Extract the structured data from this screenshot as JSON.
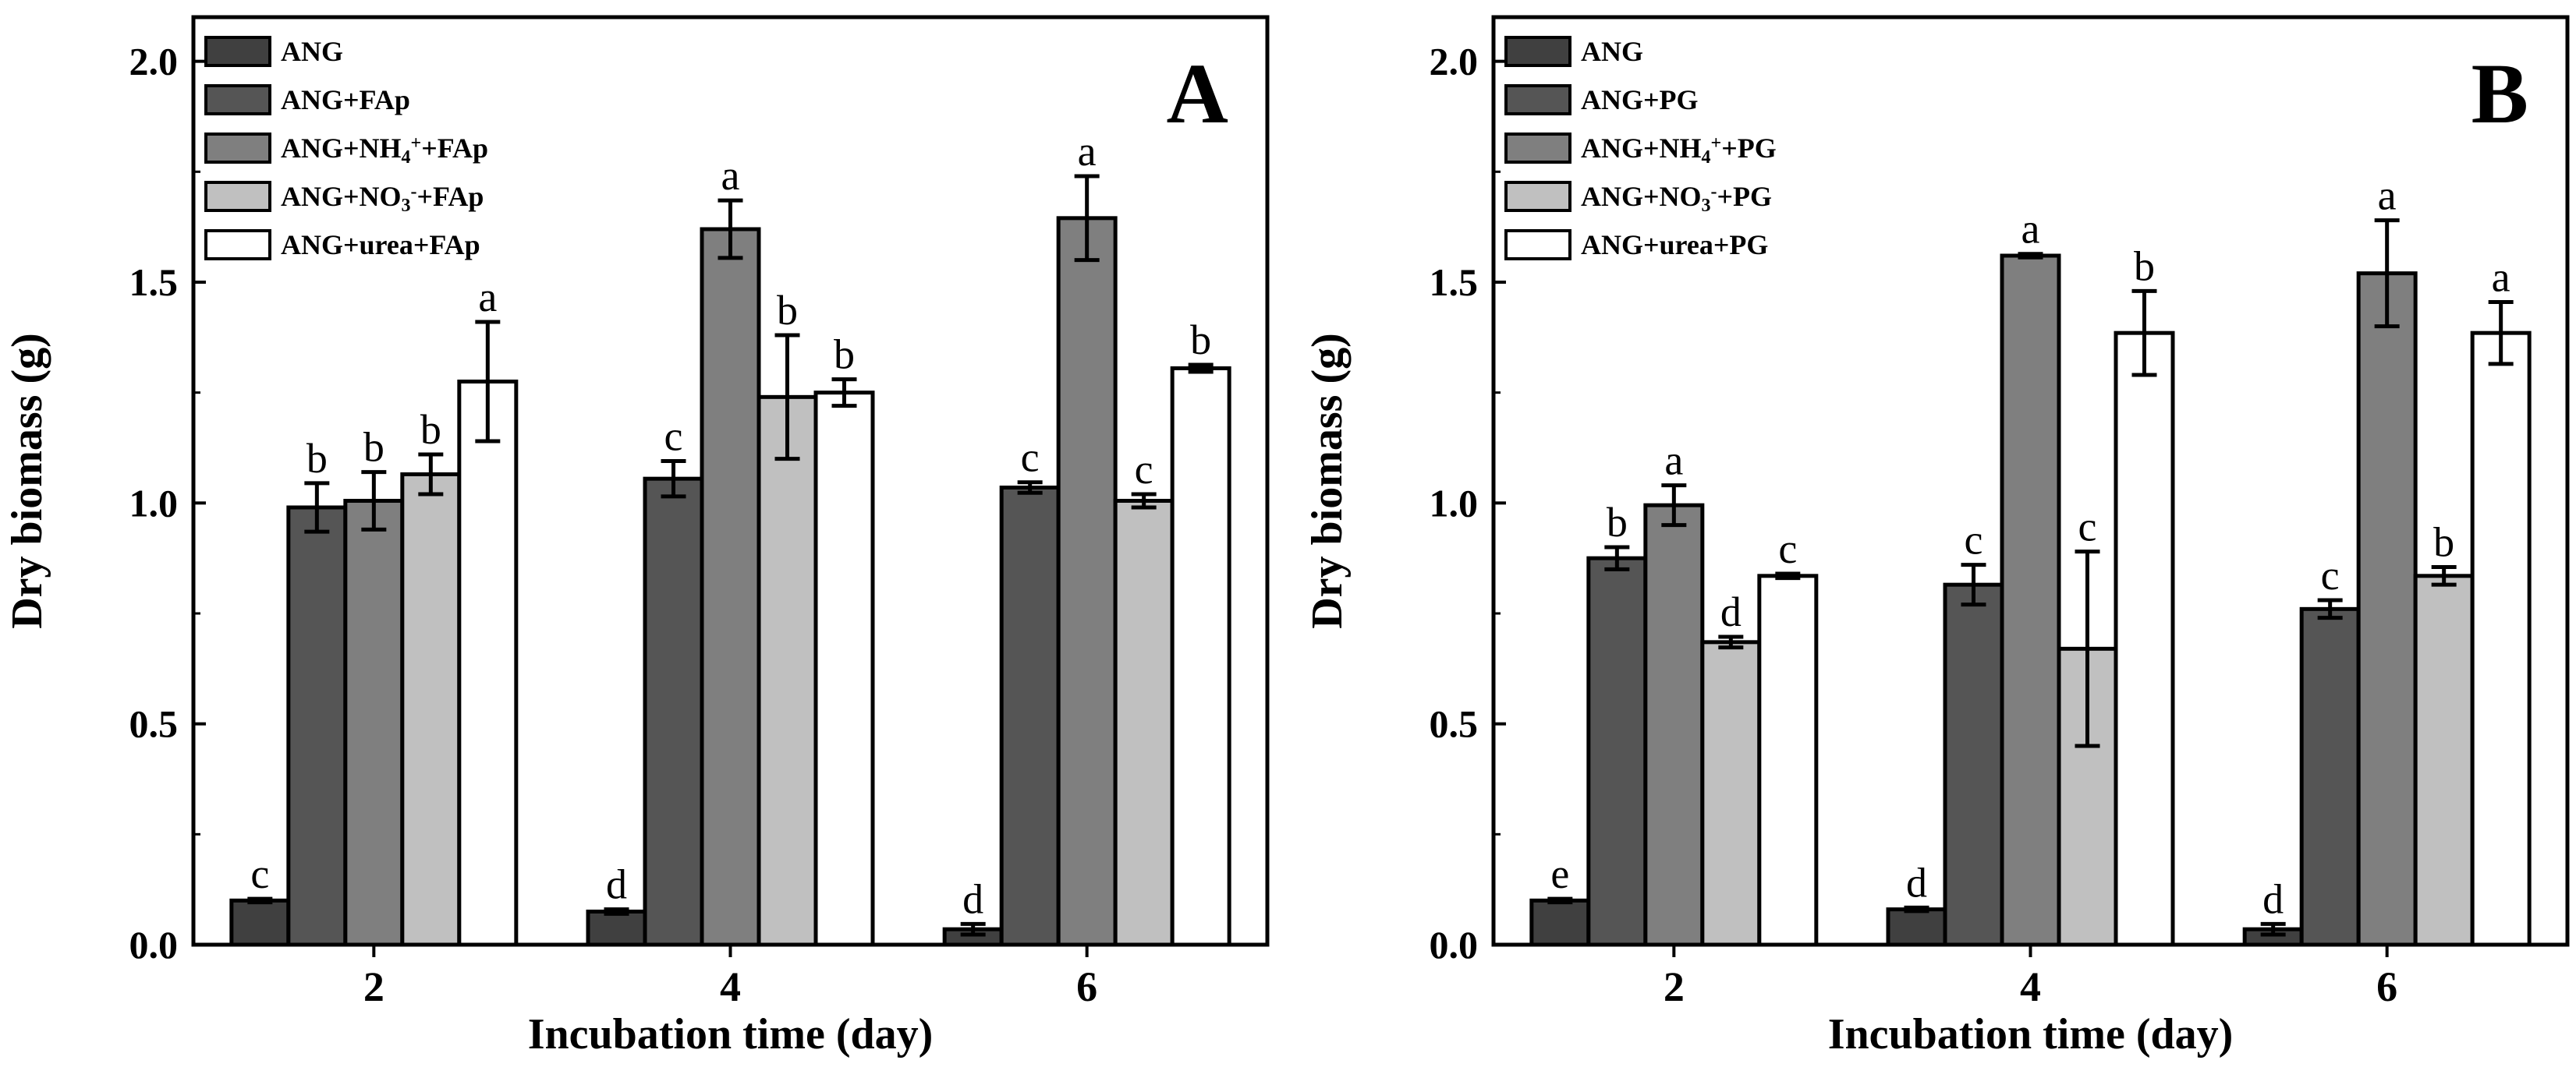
{
  "chart_data": [
    {
      "type": "bar",
      "panel_label": "A",
      "title": "",
      "xlabel": "Incubation time (day)",
      "ylabel": "Dry biomass (g)",
      "ylim": [
        0,
        2.1
      ],
      "yticks": [
        "0.0",
        "0.5",
        "1.0",
        "1.5",
        "2.0"
      ],
      "categories": [
        "2",
        "4",
        "6"
      ],
      "legend_position": "top-left",
      "series": [
        {
          "name": "ANG",
          "name_parts": [
            [
              "ANG",
              ""
            ]
          ],
          "color": "#404040",
          "values": [
            0.1,
            0.075,
            0.035
          ],
          "errors": [
            0.004,
            0.005,
            0.012
          ],
          "letters": [
            "c",
            "d",
            "d"
          ]
        },
        {
          "name": "ANG+FAp",
          "name_parts": [
            [
              "ANG+FAp",
              ""
            ]
          ],
          "color": "#555555",
          "values": [
            0.99,
            1.055,
            1.035
          ],
          "errors": [
            0.055,
            0.04,
            0.012
          ],
          "letters": [
            "b",
            "c",
            "c"
          ]
        },
        {
          "name": "ANG+NH4++FAp",
          "name_parts": [
            [
              "ANG+NH",
              ""
            ],
            [
              "4",
              "sub"
            ],
            [
              "+",
              "sup"
            ],
            [
              "+FAp",
              ""
            ]
          ],
          "color": "#7f7f7f",
          "values": [
            1.005,
            1.62,
            1.645
          ],
          "errors": [
            0.065,
            0.065,
            0.095
          ],
          "letters": [
            "b",
            "a",
            "a"
          ]
        },
        {
          "name": "ANG+NO3-+FAp",
          "name_parts": [
            [
              "ANG+NO",
              ""
            ],
            [
              "3",
              "sub"
            ],
            [
              "-",
              "sup"
            ],
            [
              "+FAp",
              ""
            ]
          ],
          "color": "#c0c0c0",
          "values": [
            1.065,
            1.24,
            1.005
          ],
          "errors": [
            0.045,
            0.14,
            0.015
          ],
          "letters": [
            "b",
            "b",
            "c"
          ]
        },
        {
          "name": "ANG+urea+FAp",
          "name_parts": [
            [
              "ANG+urea+FAp",
              ""
            ]
          ],
          "color": "#ffffff",
          "values": [
            1.275,
            1.25,
            1.305
          ],
          "errors": [
            0.135,
            0.03,
            0.008
          ],
          "letters": [
            "a",
            "b",
            "b"
          ]
        }
      ]
    },
    {
      "type": "bar",
      "panel_label": "B",
      "title": "",
      "xlabel": "Incubation time (day)",
      "ylabel": "Dry biomass (g)",
      "ylim": [
        0,
        2.1
      ],
      "yticks": [
        "0.0",
        "0.5",
        "1.0",
        "1.5",
        "2.0"
      ],
      "categories": [
        "2",
        "4",
        "6"
      ],
      "legend_position": "top-left",
      "series": [
        {
          "name": "ANG",
          "name_parts": [
            [
              "ANG",
              ""
            ]
          ],
          "color": "#404040",
          "values": [
            0.1,
            0.08,
            0.035
          ],
          "errors": [
            0.004,
            0.004,
            0.012
          ],
          "letters": [
            "e",
            "d",
            "d"
          ]
        },
        {
          "name": "ANG+PG",
          "name_parts": [
            [
              "ANG+PG",
              ""
            ]
          ],
          "color": "#555555",
          "values": [
            0.875,
            0.815,
            0.76
          ],
          "errors": [
            0.025,
            0.045,
            0.02
          ],
          "letters": [
            "b",
            "c",
            "c"
          ]
        },
        {
          "name": "ANG+NH4++PG",
          "name_parts": [
            [
              "ANG+NH",
              ""
            ],
            [
              "4",
              "sub"
            ],
            [
              "+",
              "sup"
            ],
            [
              "+PG",
              ""
            ]
          ],
          "color": "#7f7f7f",
          "values": [
            0.995,
            1.56,
            1.52
          ],
          "errors": [
            0.045,
            0.004,
            0.12
          ],
          "letters": [
            "a",
            "a",
            "a"
          ]
        },
        {
          "name": "ANG+NO3-+PG",
          "name_parts": [
            [
              "ANG+NO",
              ""
            ],
            [
              "3",
              "sub"
            ],
            [
              "-",
              "sup"
            ],
            [
              "+PG",
              ""
            ]
          ],
          "color": "#c0c0c0",
          "values": [
            0.685,
            0.67,
            0.835
          ],
          "errors": [
            0.012,
            0.22,
            0.02
          ],
          "letters": [
            "d",
            "c",
            "b"
          ]
        },
        {
          "name": "ANG+urea+PG",
          "name_parts": [
            [
              "ANG+urea+PG",
              ""
            ]
          ],
          "color": "#ffffff",
          "values": [
            0.835,
            1.385,
            1.385
          ],
          "errors": [
            0.005,
            0.095,
            0.07
          ],
          "letters": [
            "c",
            "b",
            "a"
          ]
        }
      ]
    }
  ]
}
